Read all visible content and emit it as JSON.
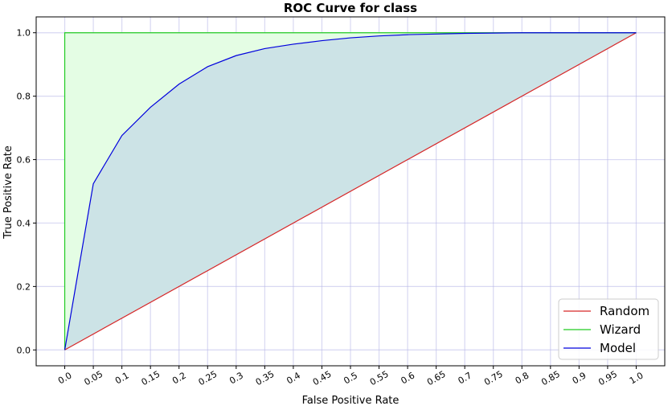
{
  "chart_data": {
    "type": "line",
    "title": "ROC Curve for class",
    "xlabel": "False Positive Rate",
    "ylabel": "True Positive Rate",
    "xlim": [
      -0.05,
      1.05
    ],
    "ylim": [
      -0.05,
      1.05
    ],
    "grid": true,
    "legend_position": "bottom-right",
    "x_ticks": [
      "0.0",
      "0.05",
      "0.1",
      "0.15",
      "0.2",
      "0.25",
      "0.3",
      "0.35",
      "0.4",
      "0.45",
      "0.5",
      "0.55",
      "0.6",
      "0.65",
      "0.7",
      "0.75",
      "0.8",
      "0.85",
      "0.9",
      "0.95",
      "1.0"
    ],
    "y_ticks": [
      "0.0",
      "0.2",
      "0.4",
      "0.6",
      "0.8",
      "1.0"
    ],
    "series": [
      {
        "name": "Random",
        "color": "#d62728",
        "x": [
          0.0,
          1.0
        ],
        "y": [
          0.0,
          1.0
        ]
      },
      {
        "name": "Wizard",
        "color": "#22cc22",
        "x": [
          0.0,
          0.0,
          1.0
        ],
        "y": [
          0.0,
          1.0,
          1.0
        ],
        "fill": "#e4fde4"
      },
      {
        "name": "Model",
        "color": "#0000dd",
        "fill": "#cce3e6",
        "x": [
          0.0,
          0.05,
          0.1,
          0.15,
          0.2,
          0.25,
          0.3,
          0.35,
          0.4,
          0.45,
          0.5,
          0.55,
          0.6,
          0.65,
          0.7,
          0.75,
          0.8,
          0.85,
          0.9,
          0.95,
          1.0
        ],
        "y": [
          0.0,
          0.524,
          0.676,
          0.765,
          0.838,
          0.893,
          0.928,
          0.95,
          0.964,
          0.975,
          0.984,
          0.99,
          0.994,
          0.996,
          0.998,
          0.999,
          1.0,
          1.0,
          1.0,
          1.0,
          1.0
        ]
      }
    ]
  }
}
